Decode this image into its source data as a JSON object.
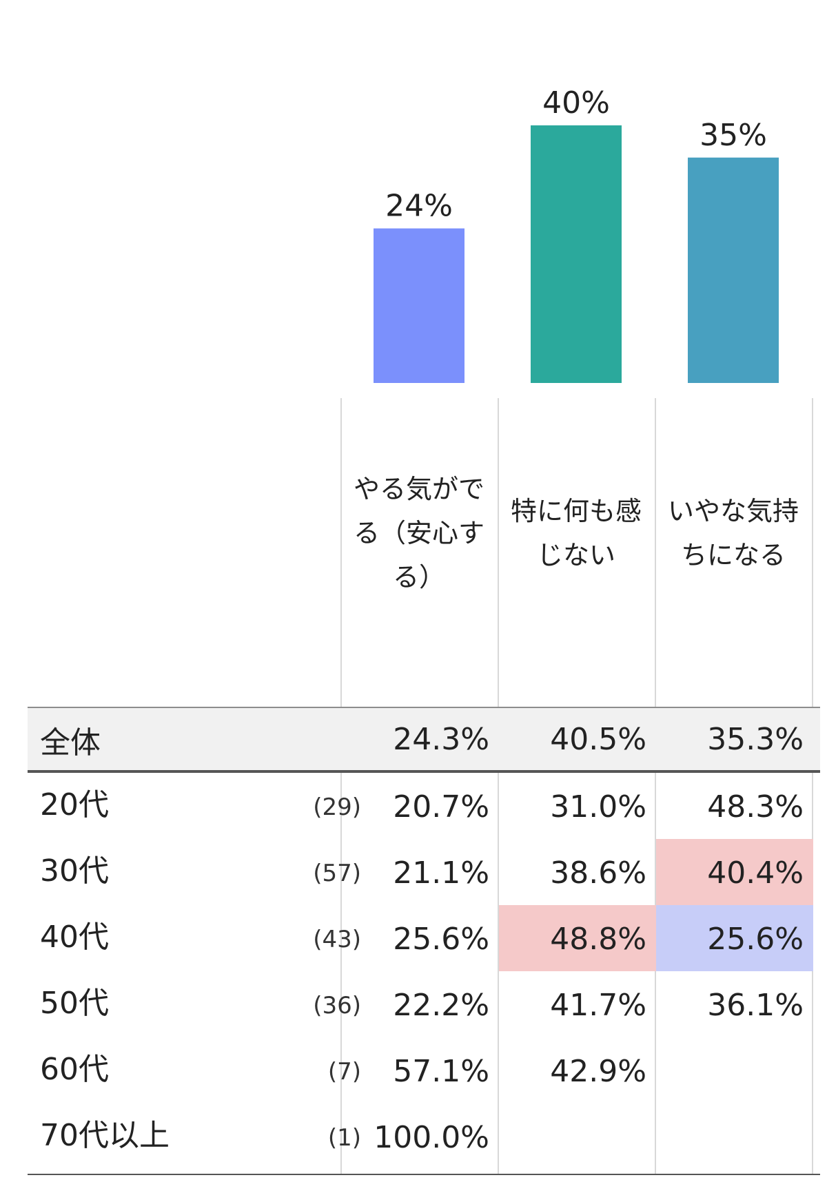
{
  "chart_data": {
    "type": "bar",
    "categories": [
      "やる気がでる（安心する）",
      "特に何も感じない",
      "いやな気持ちになる"
    ],
    "values": [
      24,
      40,
      35
    ],
    "value_labels": [
      "24%",
      "40%",
      "35%"
    ],
    "colors": [
      "#7b90fc",
      "#2ba99c",
      "#48a0c0"
    ],
    "ylim": [
      0,
      40
    ]
  },
  "table": {
    "columns": [
      {
        "lines": [
          "やる気がで",
          "る（安心す",
          "る）"
        ]
      },
      {
        "lines": [
          "特に何も感",
          "じない"
        ]
      },
      {
        "lines": [
          "いやな気持",
          "ちになる"
        ]
      }
    ],
    "total": {
      "label": "全体",
      "values": [
        "24.3%",
        "40.5%",
        "35.3%"
      ]
    },
    "rows": [
      {
        "label": "20代",
        "n": "(29)",
        "values": [
          "20.7%",
          "31.0%",
          "48.3%"
        ],
        "highlight": [
          "",
          "",
          ""
        ]
      },
      {
        "label": "30代",
        "n": "(57)",
        "values": [
          "21.1%",
          "38.6%",
          "40.4%"
        ],
        "highlight": [
          "",
          "",
          "high"
        ]
      },
      {
        "label": "40代",
        "n": "(43)",
        "values": [
          "25.6%",
          "48.8%",
          "25.6%"
        ],
        "highlight": [
          "",
          "high",
          "low"
        ]
      },
      {
        "label": "50代",
        "n": "(36)",
        "values": [
          "22.2%",
          "41.7%",
          "36.1%"
        ],
        "highlight": [
          "",
          "",
          ""
        ]
      },
      {
        "label": "60代",
        "n": "(7)",
        "values": [
          "57.1%",
          "42.9%",
          ""
        ],
        "highlight": [
          "",
          "",
          ""
        ]
      },
      {
        "label": "70代以上",
        "n": "(1)",
        "values": [
          "100.0%",
          "",
          ""
        ],
        "highlight": [
          "",
          "",
          ""
        ]
      }
    ],
    "highlight_colors": {
      "high": "#f5c9c9",
      "low": "#c7cdf8"
    }
  }
}
